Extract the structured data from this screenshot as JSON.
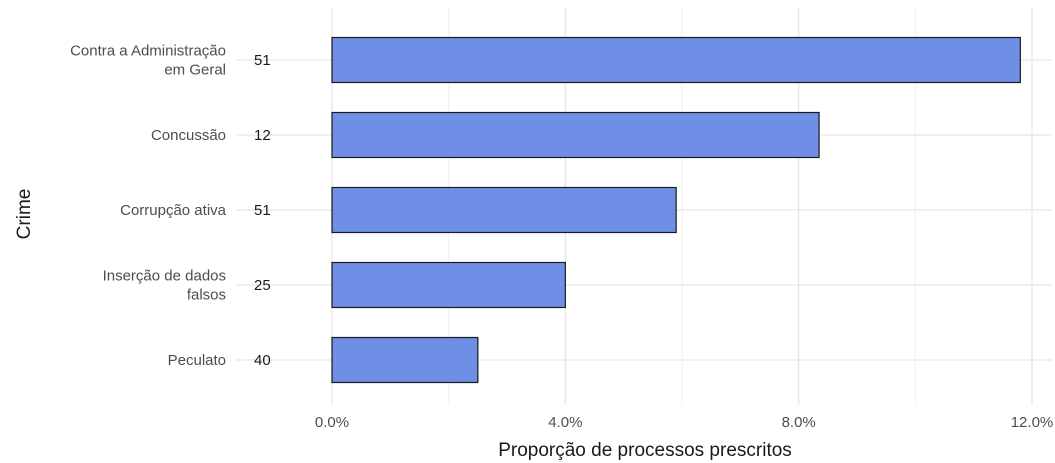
{
  "chart_data": {
    "type": "bar",
    "orientation": "horizontal",
    "xlabel": "Proporção de processos prescritos",
    "ylabel": "Crime",
    "xlim": [
      0,
      0.12
    ],
    "x_ticks": [
      0,
      0.04,
      0.08,
      0.12
    ],
    "x_tick_labels": [
      "0.0%",
      "4.0%",
      "8.0%",
      "12.0%"
    ],
    "grid": true,
    "legend": "none",
    "bar_color": "#6f8ee6",
    "bar_edge_color": "#1a1a1a",
    "categories": [
      [
        "Contra a Administração",
        "em Geral"
      ],
      [
        "Concussão"
      ],
      [
        "Corrupção ativa"
      ],
      [
        "Inserção de dados",
        "falsos"
      ],
      [
        "Peculato"
      ]
    ],
    "values": [
      0.118,
      0.0835,
      0.059,
      0.04,
      0.025
    ],
    "counts": [
      "51",
      "12",
      "51",
      "25",
      "40"
    ]
  }
}
